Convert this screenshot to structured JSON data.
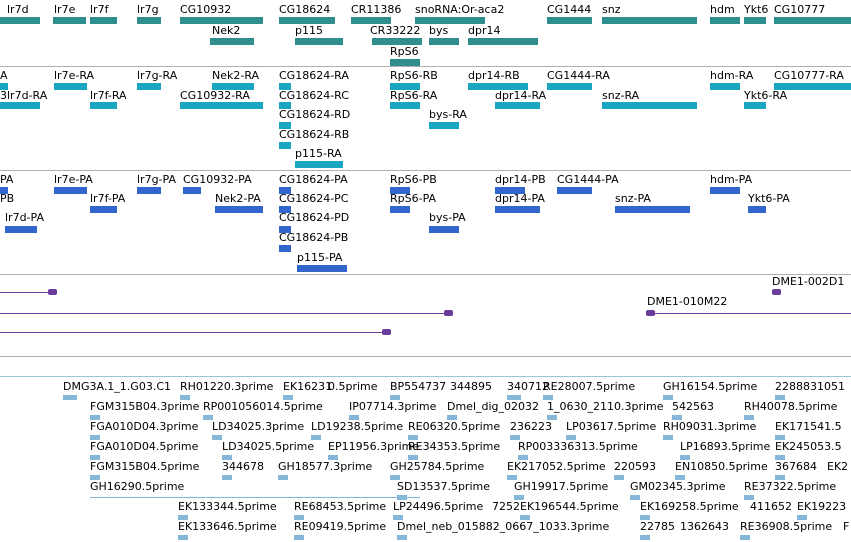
{
  "gene_track": {
    "row1": [
      "lr7d",
      "lr7e",
      "lr7f",
      "lr7g",
      "CG10932",
      "CG18624",
      "CR11386",
      "snoRNA:Or-aca2",
      "CG1444",
      "snz",
      "hdm",
      "Ykt6",
      "CG10777"
    ],
    "row2": [
      "Nek2",
      "p115",
      "CR33222",
      "bys",
      "dpr14"
    ],
    "row3": [
      "RpS6"
    ]
  },
  "transcript_track": {
    "labels": [
      "A",
      "lr7e-RA",
      "lr7g-RA",
      "Nek2-RA",
      "CG18624-RA",
      "RpS6-RB",
      "dpr14-RB",
      "CG1444-RA",
      "hdm-RA",
      "CG10777-RA",
      "3lr7d-RA",
      "lr7f-RA",
      "CG10932-RA",
      "CG18624-RC",
      "RpS6-RA",
      "dpr14-RA",
      "snz-RA",
      "Ykt6-RA",
      "CG18624-RD",
      "bys-RA",
      "CG18624-RB",
      "p115-RA"
    ]
  },
  "protein_track": {
    "labels": [
      "PA",
      "lr7e-PA",
      "lr7g-PA",
      "CG10932-PA",
      "CG18624-PA",
      "RpS6-PB",
      "dpr14-PB",
      "CG1444-PA",
      "hdm-PA",
      "PB",
      "lr7f-PA",
      "Nek2-PA",
      "CG18624-PC",
      "RpS6-PA",
      "dpr14-PA",
      "snz-PA",
      "Ykt6-PA",
      "lr7d-PA",
      "CG18624-PD",
      "bys-PA",
      "CG18624-PB",
      "p115-PA"
    ]
  },
  "bac_track": {
    "labels": [
      "DME1-002D1",
      "DME1-010M22"
    ]
  },
  "est_track": {
    "labels": [
      "DMG3A.1_1.G03.C1",
      "RH01220.3prime",
      "EK16231",
      "0.5prime",
      "BP554737",
      "344895",
      "340712",
      "RE28007.5prime",
      "GH16154.5prime",
      "2288831051",
      "FGM315B04.3prime",
      "RP001056014.5prime",
      "IP07714.3prime",
      "Dmel_dig_02032",
      "1_0630_2110.3prime",
      "542563",
      "RH40078.5prime",
      "FGA010D04.3prime",
      "LD34025.3prime",
      "LD19238.5prime",
      "RE06320.5prime",
      "236223",
      "LP03617.5prime",
      "RH09031.3prime",
      "EK171541.5",
      "FGA010D04.5prime",
      "LD34025.5prime",
      "EP11956.3prime",
      "RE34353.5prime",
      "RP003336313.5prime",
      "LP16893.5prime",
      "EK245053.5",
      "FGM315B04.5prime",
      "344678",
      "GH18577.3prime",
      "GH25784.5prime",
      "EK217052.5prime",
      "220593",
      "EN10850.5prime",
      "367684",
      "EK2",
      "GH16290.5prime",
      "SD13537.5prime",
      "GH19917.5prime",
      "GM02345.3prime",
      "RE37322.5prime",
      "EK133344.5prime",
      "RE68453.5prime",
      "LP24496.5prime",
      "7252",
      "EK196544.5prime",
      "EK169258.5prime",
      "411652",
      "EK19223",
      "EK133646.5prime",
      "RE09419.5prime",
      "Dmel_neb_015882_0667_1033.3prime",
      "22785",
      "1362643",
      "RE36908.5prime",
      "F"
    ]
  },
  "colors": {
    "gene": "#2f8f8f",
    "transcript": "#1aa5c1",
    "protein": "#3366cc",
    "bac": "#6a3d9a",
    "est": "#85b8d8"
  }
}
